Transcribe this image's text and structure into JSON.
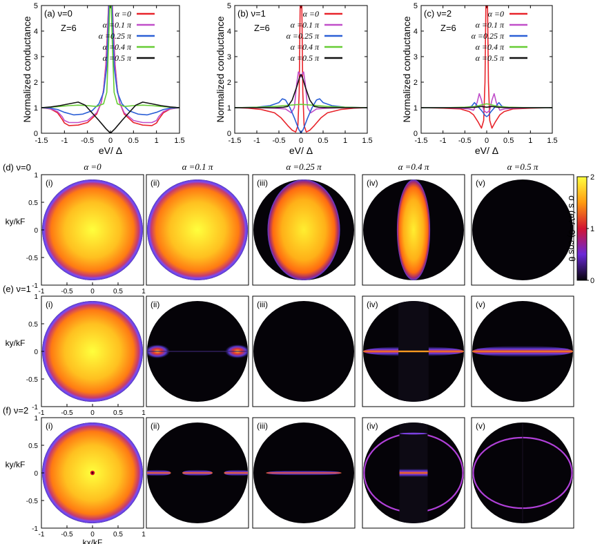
{
  "chart_data": [
    {
      "id": "a",
      "type": "line",
      "panel_label": "(a) ν=0",
      "annotation": "Z=6",
      "title": "",
      "xlabel": "eV/ Δ",
      "ylabel": "Normalized conductance",
      "xlim": [
        -1.5,
        1.5
      ],
      "ylim": [
        0,
        5
      ],
      "xticks": [
        "-1.5",
        "-1",
        "-0.5",
        "0",
        "0.5",
        "1",
        "1.5"
      ],
      "yticks": [
        "0",
        "1",
        "2",
        "3",
        "4",
        "5"
      ],
      "legend_position": "top-right",
      "series": [
        {
          "name": "α =0",
          "color": "#e8232a",
          "x": [
            -1.5,
            -1.3,
            -1.15,
            -1.05,
            -1.0,
            -0.9,
            -0.7,
            -0.5,
            -0.3,
            -0.2,
            -0.15,
            -0.1,
            -0.06,
            -0.03,
            0,
            0.03,
            0.06,
            0.1,
            0.15,
            0.2,
            0.3,
            0.5,
            0.7,
            0.9,
            1.0,
            1.05,
            1.15,
            1.3,
            1.5
          ],
          "values": [
            1.0,
            0.95,
            0.8,
            0.55,
            0.4,
            0.3,
            0.32,
            0.42,
            0.75,
            1.2,
            1.7,
            2.7,
            4.2,
            5.5,
            6.5,
            5.5,
            4.2,
            2.7,
            1.7,
            1.2,
            0.75,
            0.42,
            0.32,
            0.3,
            0.4,
            0.55,
            0.8,
            0.95,
            1.0
          ]
        },
        {
          "name": "α =0.1 π",
          "color": "#c04ec9",
          "x": [
            -1.5,
            -1.3,
            -1.15,
            -1.05,
            -1.0,
            -0.9,
            -0.7,
            -0.5,
            -0.3,
            -0.2,
            -0.15,
            -0.1,
            -0.06,
            -0.03,
            0,
            0.03,
            0.06,
            0.1,
            0.15,
            0.2,
            0.3,
            0.5,
            0.7,
            0.9,
            1.0,
            1.05,
            1.15,
            1.3,
            1.5
          ],
          "values": [
            1.0,
            0.96,
            0.85,
            0.65,
            0.5,
            0.42,
            0.42,
            0.5,
            0.8,
            1.2,
            1.7,
            2.6,
            4.0,
            5.5,
            6.2,
            5.5,
            4.0,
            2.6,
            1.7,
            1.2,
            0.8,
            0.5,
            0.42,
            0.42,
            0.5,
            0.65,
            0.85,
            0.96,
            1.0
          ]
        },
        {
          "name": "α =0.25 π",
          "color": "#2a5fd6",
          "x": [
            -1.5,
            -1.3,
            -1.15,
            -1.0,
            -0.8,
            -0.6,
            -0.4,
            -0.25,
            -0.15,
            -0.08,
            -0.03,
            0,
            0.03,
            0.08,
            0.15,
            0.25,
            0.4,
            0.6,
            0.8,
            1.0,
            1.15,
            1.3,
            1.5
          ],
          "values": [
            1.0,
            0.98,
            0.93,
            0.82,
            0.72,
            0.75,
            0.88,
            1.15,
            1.6,
            2.6,
            5.0,
            6.0,
            5.0,
            2.6,
            1.6,
            1.15,
            0.88,
            0.75,
            0.72,
            0.82,
            0.93,
            0.98,
            1.0
          ]
        },
        {
          "name": "α =0.4 π",
          "color": "#66cc33",
          "x": [
            -1.5,
            -1.3,
            -1.1,
            -0.9,
            -0.7,
            -0.5,
            -0.3,
            -0.15,
            -0.08,
            -0.04,
            0,
            0.04,
            0.08,
            0.15,
            0.3,
            0.5,
            0.7,
            0.9,
            1.1,
            1.3,
            1.5
          ],
          "values": [
            1.0,
            1.02,
            1.05,
            1.08,
            1.1,
            1.08,
            1.05,
            1.15,
            1.6,
            3.5,
            6.0,
            3.5,
            1.6,
            1.15,
            1.05,
            1.08,
            1.1,
            1.08,
            1.05,
            1.02,
            1.0
          ]
        },
        {
          "name": "α =0.5 π",
          "color": "#111111",
          "x": [
            -1.5,
            -1.3,
            -1.1,
            -0.9,
            -0.7,
            -0.55,
            -0.4,
            -0.25,
            -0.1,
            0,
            0.1,
            0.25,
            0.4,
            0.55,
            0.7,
            0.9,
            1.1,
            1.3,
            1.5
          ],
          "values": [
            1.0,
            1.03,
            1.08,
            1.15,
            1.22,
            1.1,
            0.8,
            0.5,
            0.18,
            0.0,
            0.18,
            0.5,
            0.8,
            1.1,
            1.22,
            1.15,
            1.08,
            1.03,
            1.0
          ]
        }
      ]
    },
    {
      "id": "b",
      "type": "line",
      "panel_label": "(b) ν=1",
      "annotation": "Z=6",
      "title": "",
      "xlabel": "eV/ Δ",
      "ylabel": "Normalized conductance",
      "xlim": [
        -1.5,
        1.5
      ],
      "ylim": [
        0,
        5
      ],
      "xticks": [
        "-1.5",
        "-1",
        "-0.5",
        "0",
        "0.5",
        "1",
        "1.5"
      ],
      "yticks": [
        "0",
        "1",
        "2",
        "3",
        "4",
        "5"
      ],
      "legend_position": "top-right",
      "series": [
        {
          "name": "α =0",
          "color": "#e8232a",
          "x": [
            -1.5,
            -1.2,
            -0.9,
            -0.6,
            -0.45,
            -0.3,
            -0.2,
            -0.12,
            -0.07,
            -0.04,
            -0.02,
            0,
            0.02,
            0.04,
            0.07,
            0.12,
            0.2,
            0.3,
            0.45,
            0.6,
            0.9,
            1.2,
            1.5
          ],
          "values": [
            1.0,
            0.98,
            0.93,
            0.8,
            0.6,
            0.3,
            0.12,
            0.05,
            0.3,
            1.6,
            4.8,
            6.5,
            4.8,
            1.6,
            0.3,
            0.05,
            0.12,
            0.3,
            0.6,
            0.8,
            0.93,
            0.98,
            1.0
          ]
        },
        {
          "name": "α =0.1 π",
          "color": "#c04ec9",
          "x": [
            -1.5,
            -1.0,
            -0.6,
            -0.35,
            -0.22,
            -0.15,
            -0.1,
            -0.06,
            -0.02,
            0,
            0.02,
            0.06,
            0.1,
            0.15,
            0.22,
            0.35,
            0.6,
            1.0,
            1.5
          ],
          "values": [
            1.0,
            1.0,
            0.98,
            0.95,
            0.8,
            1.0,
            1.9,
            2.4,
            2.3,
            2.2,
            2.3,
            2.4,
            1.9,
            1.0,
            0.8,
            0.95,
            0.98,
            1.0,
            1.0
          ]
        },
        {
          "name": "α =0.25 π",
          "color": "#2a5fd6",
          "x": [
            -1.5,
            -1.0,
            -0.7,
            -0.5,
            -0.42,
            -0.35,
            -0.25,
            -0.15,
            -0.05,
            0,
            0.05,
            0.15,
            0.25,
            0.35,
            0.42,
            0.5,
            0.7,
            1.0,
            1.5
          ],
          "values": [
            1.0,
            1.02,
            1.08,
            1.2,
            1.35,
            1.3,
            1.0,
            0.6,
            0.15,
            0.0,
            0.15,
            0.6,
            1.0,
            1.3,
            1.35,
            1.2,
            1.08,
            1.02,
            1.0
          ]
        },
        {
          "name": "α =0.4 π",
          "color": "#66cc33",
          "x": [
            -1.5,
            -1.0,
            -0.6,
            -0.4,
            -0.25,
            -0.1,
            0,
            0.1,
            0.25,
            0.4,
            0.6,
            1.0,
            1.5
          ],
          "values": [
            1.0,
            1.02,
            1.05,
            1.08,
            1.1,
            1.12,
            1.13,
            1.12,
            1.1,
            1.08,
            1.05,
            1.02,
            1.0
          ]
        },
        {
          "name": "α =0.5 π",
          "color": "#111111",
          "x": [
            -1.5,
            -1.0,
            -0.6,
            -0.4,
            -0.3,
            -0.2,
            -0.1,
            -0.03,
            0,
            0.03,
            0.1,
            0.2,
            0.3,
            0.4,
            0.6,
            1.0,
            1.5
          ],
          "values": [
            1.0,
            1.0,
            1.0,
            1.02,
            1.05,
            1.3,
            1.8,
            2.2,
            2.3,
            2.2,
            1.8,
            1.3,
            1.05,
            1.02,
            1.0,
            1.0,
            1.0
          ]
        }
      ]
    },
    {
      "id": "c",
      "type": "line",
      "panel_label": "(c) ν=2",
      "annotation": "Z=6",
      "title": "",
      "xlabel": "eV/ Δ",
      "ylabel": "Normalized conductance",
      "xlim": [
        -1.5,
        1.5
      ],
      "ylim": [
        0,
        5
      ],
      "xticks": [
        "-1.5",
        "-1",
        "-0.5",
        "0",
        "0.5",
        "1",
        "1.5"
      ],
      "yticks": [
        "0",
        "1",
        "2",
        "3",
        "4",
        "5"
      ],
      "legend_position": "top-right",
      "series": [
        {
          "name": "α =0",
          "color": "#e8232a",
          "x": [
            -1.5,
            -1.0,
            -0.6,
            -0.4,
            -0.3,
            -0.2,
            -0.12,
            -0.07,
            -0.04,
            -0.02,
            0,
            0.02,
            0.04,
            0.07,
            0.12,
            0.2,
            0.3,
            0.4,
            0.6,
            1.0,
            1.5
          ],
          "values": [
            1.0,
            0.98,
            0.95,
            0.85,
            0.72,
            0.45,
            0.2,
            0.5,
            2.0,
            4.8,
            6.5,
            4.8,
            2.0,
            0.5,
            0.2,
            0.45,
            0.72,
            0.85,
            0.95,
            0.98,
            1.0
          ]
        },
        {
          "name": "α =0.1 π",
          "color": "#c04ec9",
          "x": [
            -1.5,
            -1.0,
            -0.6,
            -0.4,
            -0.3,
            -0.22,
            -0.17,
            -0.12,
            -0.07,
            0,
            0.07,
            0.12,
            0.17,
            0.22,
            0.3,
            0.4,
            0.6,
            1.0,
            1.5
          ],
          "values": [
            1.0,
            1.0,
            0.98,
            0.95,
            0.9,
            1.2,
            1.55,
            1.3,
            0.9,
            0.8,
            0.9,
            1.3,
            1.55,
            1.2,
            0.9,
            0.95,
            0.98,
            1.0,
            1.0
          ]
        },
        {
          "name": "α =0.25 π",
          "color": "#2a5fd6",
          "x": [
            -1.5,
            -1.0,
            -0.5,
            -0.35,
            -0.28,
            -0.2,
            -0.1,
            -0.04,
            0,
            0.04,
            0.1,
            0.2,
            0.28,
            0.35,
            0.5,
            1.0,
            1.5
          ],
          "values": [
            1.0,
            1.0,
            1.0,
            1.05,
            1.2,
            1.05,
            0.85,
            0.7,
            0.65,
            0.7,
            0.85,
            1.05,
            1.2,
            1.05,
            1.0,
            1.0,
            1.0
          ]
        },
        {
          "name": "α =0.4 π",
          "color": "#66cc33",
          "x": [
            -1.5,
            -1.0,
            -0.5,
            -0.25,
            -0.1,
            0,
            0.1,
            0.25,
            0.5,
            1.0,
            1.5
          ],
          "values": [
            1.0,
            1.0,
            1.02,
            1.05,
            1.12,
            1.15,
            1.12,
            1.05,
            1.02,
            1.0,
            1.0
          ]
        },
        {
          "name": "α =0.5 π",
          "color": "#111111",
          "x": [
            -1.5,
            -1.0,
            -0.5,
            -0.25,
            -0.12,
            0,
            0.12,
            0.25,
            0.5,
            1.0,
            1.5
          ],
          "values": [
            1.0,
            1.0,
            1.0,
            1.02,
            1.05,
            1.02,
            1.05,
            1.02,
            1.0,
            1.0,
            1.0
          ]
        }
      ]
    },
    {
      "id": "maps",
      "type": "heatmap",
      "title": "",
      "xlabel": "kx/kF",
      "ylabel": "ky/kF",
      "xlim": [
        -1,
        1
      ],
      "ylim": [
        -1,
        1
      ],
      "xticks": [
        "-1",
        "-0.5",
        "0",
        "0.5",
        "1"
      ],
      "yticks": [
        "1",
        "0.5",
        "0",
        "-0.5",
        "-1"
      ],
      "column_headers": [
        "α =0",
        "α =0.1 π",
        "α =0.25 π",
        "α =0.4 π",
        "α =0.5 π"
      ],
      "panel_tags": [
        "(i)",
        "(ii)",
        "(iii)",
        "(iv)",
        "(v)"
      ],
      "colorbar": {
        "label": "σ s (eV=0) cos θ",
        "range": [
          0,
          2
        ],
        "ticks": [
          "2",
          "1",
          "0"
        ],
        "stops": [
          "#ffff40",
          "#ff9a10",
          "#d21432",
          "#6a28d8",
          "#06040a"
        ]
      },
      "rows": [
        {
          "row_label": "(d) ν=0",
          "cells": [
            {
              "pattern": "disk",
              "ellipse_rx": 1.0
            },
            {
              "pattern": "disk",
              "ellipse_rx": 1.0
            },
            {
              "pattern": "disk",
              "ellipse_rx": 0.72
            },
            {
              "pattern": "disk",
              "ellipse_rx": 0.33
            },
            {
              "pattern": "empty"
            }
          ]
        },
        {
          "row_label": "(e) ν=1",
          "cells": [
            {
              "pattern": "disk",
              "ellipse_rx": 1.0
            },
            {
              "pattern": "side-lobes"
            },
            {
              "pattern": "empty"
            },
            {
              "pattern": "split-streak",
              "gap_half_width": 0.3
            },
            {
              "pattern": "streak"
            }
          ]
        },
        {
          "row_label": "(f) ν=2",
          "cells": [
            {
              "pattern": "disk-dot",
              "ellipse_rx": 1.0
            },
            {
              "pattern": "dashed-streak"
            },
            {
              "pattern": "thin-streak"
            },
            {
              "pattern": "box-arcs",
              "gap_half_width": 0.28
            },
            {
              "pattern": "arcs"
            }
          ]
        }
      ]
    }
  ]
}
